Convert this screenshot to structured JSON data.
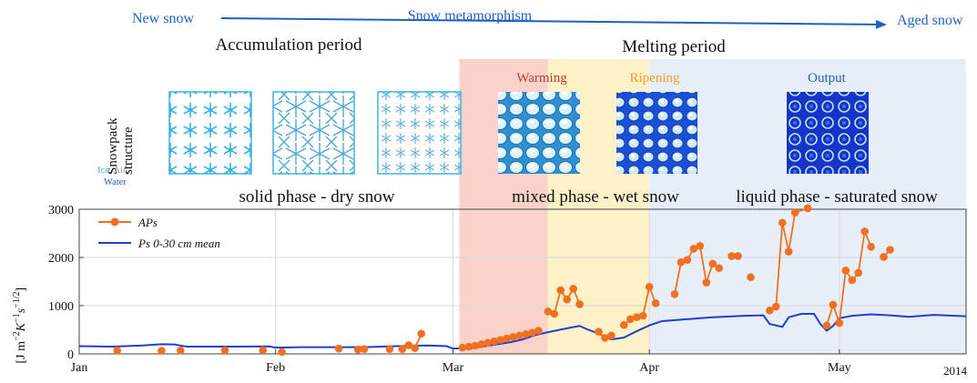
{
  "header": {
    "left": "New snow",
    "middle": "Snow metamorphism",
    "right": "Aged snow",
    "arrow_color": "#1f5fc4"
  },
  "periods": {
    "accumulation": "Accumulation period",
    "melting": "Melting period"
  },
  "stages": [
    {
      "label": "Warming",
      "color": "#c0392b",
      "bg": "#f9d3c9"
    },
    {
      "label": "Ripening",
      "color": "#f0a030",
      "bg": "#fdf1c7"
    },
    {
      "label": "Output",
      "color": "#1f5fc4",
      "bg": "#e7eef8"
    }
  ],
  "side_label": {
    "line1": "Snowpack",
    "line2": "structure",
    "ice": "Ice",
    "air": "Air",
    "water": "Water",
    "ice_color": "#3bb4e5",
    "air_color": "#999999",
    "water_color": "#1f5fc4"
  },
  "phases": {
    "solid": "solid phase - dry snow",
    "mixed": "mixed phase - wet snow",
    "liquid": "liquid phase - saturated snow"
  },
  "chart_data": {
    "type": "line",
    "ylabel": "[J m⁻²K⁻¹s⁻¹ᐟ²]",
    "ylabel_parts": [
      "[J m",
      "−2",
      "K",
      "−1",
      "s",
      "−1/2",
      "]"
    ],
    "ylim": [
      0,
      3000
    ],
    "yticks": [
      0,
      1000,
      2000,
      3000
    ],
    "x_range_day": [
      0,
      140
    ],
    "xticks": [
      {
        "label": "Jan",
        "day": 0
      },
      {
        "label": "Feb",
        "day": 31
      },
      {
        "label": "Mar",
        "day": 59
      },
      {
        "label": "Apr",
        "day": 90
      },
      {
        "label": "May",
        "day": 120
      }
    ],
    "year_label": "2014",
    "grid": true,
    "legend_position": "top-left",
    "series": [
      {
        "name": "APs",
        "color": "#f07020",
        "style": "line-markers",
        "segments": [
          [
            [
              6,
              70
            ]
          ],
          [
            [
              13,
              65
            ]
          ],
          [
            [
              16,
              70
            ]
          ],
          [
            [
              23,
              75
            ]
          ],
          [
            [
              29,
              75
            ]
          ],
          [
            [
              32,
              40
            ]
          ],
          [
            [
              41,
              110
            ]
          ],
          [
            [
              44,
              90
            ]
          ],
          [
            [
              45,
              100
            ]
          ],
          [
            [
              49,
              100
            ]
          ],
          [
            [
              51,
              100
            ],
            [
              52,
              180
            ],
            [
              53,
              120
            ],
            [
              54,
              420
            ]
          ],
          [
            [
              60.5,
              130
            ],
            [
              61.5,
              150
            ],
            [
              62.5,
              170
            ],
            [
              63.5,
              200
            ],
            [
              64.5,
              230
            ],
            [
              65.5,
              260
            ],
            [
              66.5,
              290
            ],
            [
              67.5,
              320
            ],
            [
              68.5,
              350
            ],
            [
              69.5,
              380
            ],
            [
              70.5,
              410
            ],
            [
              71.5,
              440
            ],
            [
              72.5,
              480
            ]
          ],
          [
            [
              74,
              880
            ],
            [
              75,
              830
            ],
            [
              76,
              1320
            ],
            [
              77,
              1130
            ],
            [
              78,
              1350
            ],
            [
              79,
              1030
            ]
          ],
          [
            [
              82,
              460
            ],
            [
              83,
              330
            ],
            [
              84,
              380
            ]
          ],
          [
            [
              86,
              600
            ],
            [
              87,
              720
            ],
            [
              88,
              760
            ],
            [
              89,
              790
            ],
            [
              90,
              1390
            ],
            [
              91,
              1050
            ]
          ],
          [
            [
              94,
              1240
            ],
            [
              95,
              1900
            ],
            [
              96,
              1950
            ],
            [
              97,
              2180
            ],
            [
              98,
              2240
            ],
            [
              99,
              1480
            ],
            [
              100,
              1870
            ],
            [
              101,
              1780
            ]
          ],
          [
            [
              103,
              2030
            ],
            [
              104,
              2030
            ]
          ],
          [
            [
              106,
              1590
            ]
          ],
          [
            [
              109,
              900
            ],
            [
              110,
              980
            ],
            [
              111,
              2720
            ],
            [
              112,
              2120
            ],
            [
              113,
              2930
            ],
            [
              115,
              3020
            ]
          ],
          [
            [
              118,
              590
            ],
            [
              119,
              1020
            ],
            [
              120,
              640
            ],
            [
              121,
              1730
            ],
            [
              122,
              1530
            ],
            [
              123,
              1680
            ],
            [
              124,
              2540
            ],
            [
              125,
              2220
            ]
          ],
          [
            [
              127,
              2010
            ],
            [
              128,
              2160
            ]
          ]
        ]
      },
      {
        "name": "Ps 0-30 cm mean",
        "color": "#1f3fd0",
        "style": "line",
        "points": [
          [
            0,
            160
          ],
          [
            5,
            150
          ],
          [
            10,
            175
          ],
          [
            13,
            200
          ],
          [
            15,
            195
          ],
          [
            17,
            150
          ],
          [
            20,
            150
          ],
          [
            25,
            150
          ],
          [
            30,
            155
          ],
          [
            31,
            130
          ],
          [
            35,
            140
          ],
          [
            40,
            140
          ],
          [
            45,
            140
          ],
          [
            50,
            160
          ],
          [
            55,
            175
          ],
          [
            58,
            160
          ],
          [
            59,
            110
          ],
          [
            62,
            120
          ],
          [
            65,
            180
          ],
          [
            68,
            240
          ],
          [
            70,
            300
          ],
          [
            72,
            390
          ],
          [
            74,
            450
          ],
          [
            77,
            530
          ],
          [
            79,
            580
          ],
          [
            80,
            520
          ],
          [
            82,
            420
          ],
          [
            84,
            300
          ],
          [
            86,
            340
          ],
          [
            88,
            470
          ],
          [
            90,
            590
          ],
          [
            92,
            680
          ],
          [
            95,
            710
          ],
          [
            98,
            740
          ],
          [
            100,
            760
          ],
          [
            105,
            790
          ],
          [
            108,
            800
          ],
          [
            109,
            620
          ],
          [
            111,
            560
          ],
          [
            112,
            760
          ],
          [
            114,
            830
          ],
          [
            116,
            830
          ],
          [
            117,
            620
          ],
          [
            118,
            480
          ],
          [
            119,
            580
          ],
          [
            120,
            740
          ],
          [
            122,
            790
          ],
          [
            125,
            820
          ],
          [
            128,
            800
          ],
          [
            131,
            770
          ],
          [
            135,
            810
          ],
          [
            140,
            780
          ]
        ]
      }
    ],
    "shaded_regions": [
      {
        "stage": "Warming",
        "from_day": 60,
        "to_day": 74
      },
      {
        "stage": "Ripening",
        "from_day": 74,
        "to_day": 90
      },
      {
        "stage": "Output",
        "from_day": 90,
        "to_day": 140
      }
    ]
  }
}
